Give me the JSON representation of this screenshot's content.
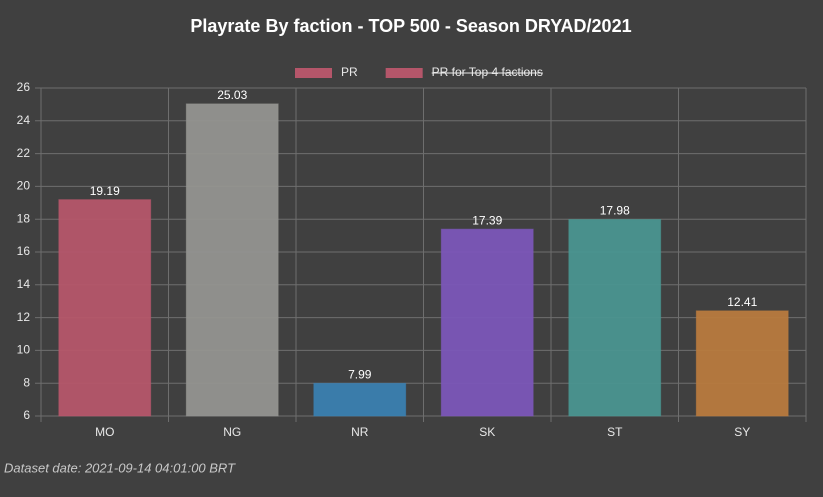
{
  "chart_data": {
    "type": "bar",
    "title": "Playrate By faction - TOP 500 - Season DRYAD/2021",
    "categories": [
      "MO",
      "NG",
      "NR",
      "SK",
      "ST",
      "SY"
    ],
    "series": [
      {
        "name": "PR",
        "color": "#b5566a",
        "colors": [
          "#b5566a",
          "#939390",
          "#3a7fb0",
          "#7b56b8",
          "#4a9590",
          "#b87a3e"
        ],
        "values": [
          19.19,
          25.03,
          7.99,
          17.39,
          17.98,
          12.41
        ]
      },
      {
        "name": "PR for Top 4 factions",
        "color": "#b5566a",
        "hidden": true
      }
    ],
    "ylim": [
      6,
      26
    ],
    "yticks": [
      6,
      8,
      10,
      12,
      14,
      16,
      18,
      20,
      22,
      24,
      26
    ],
    "grid": true,
    "legend": "top",
    "footer": "Dataset date: 2021-09-14 04:01:00 BRT"
  }
}
